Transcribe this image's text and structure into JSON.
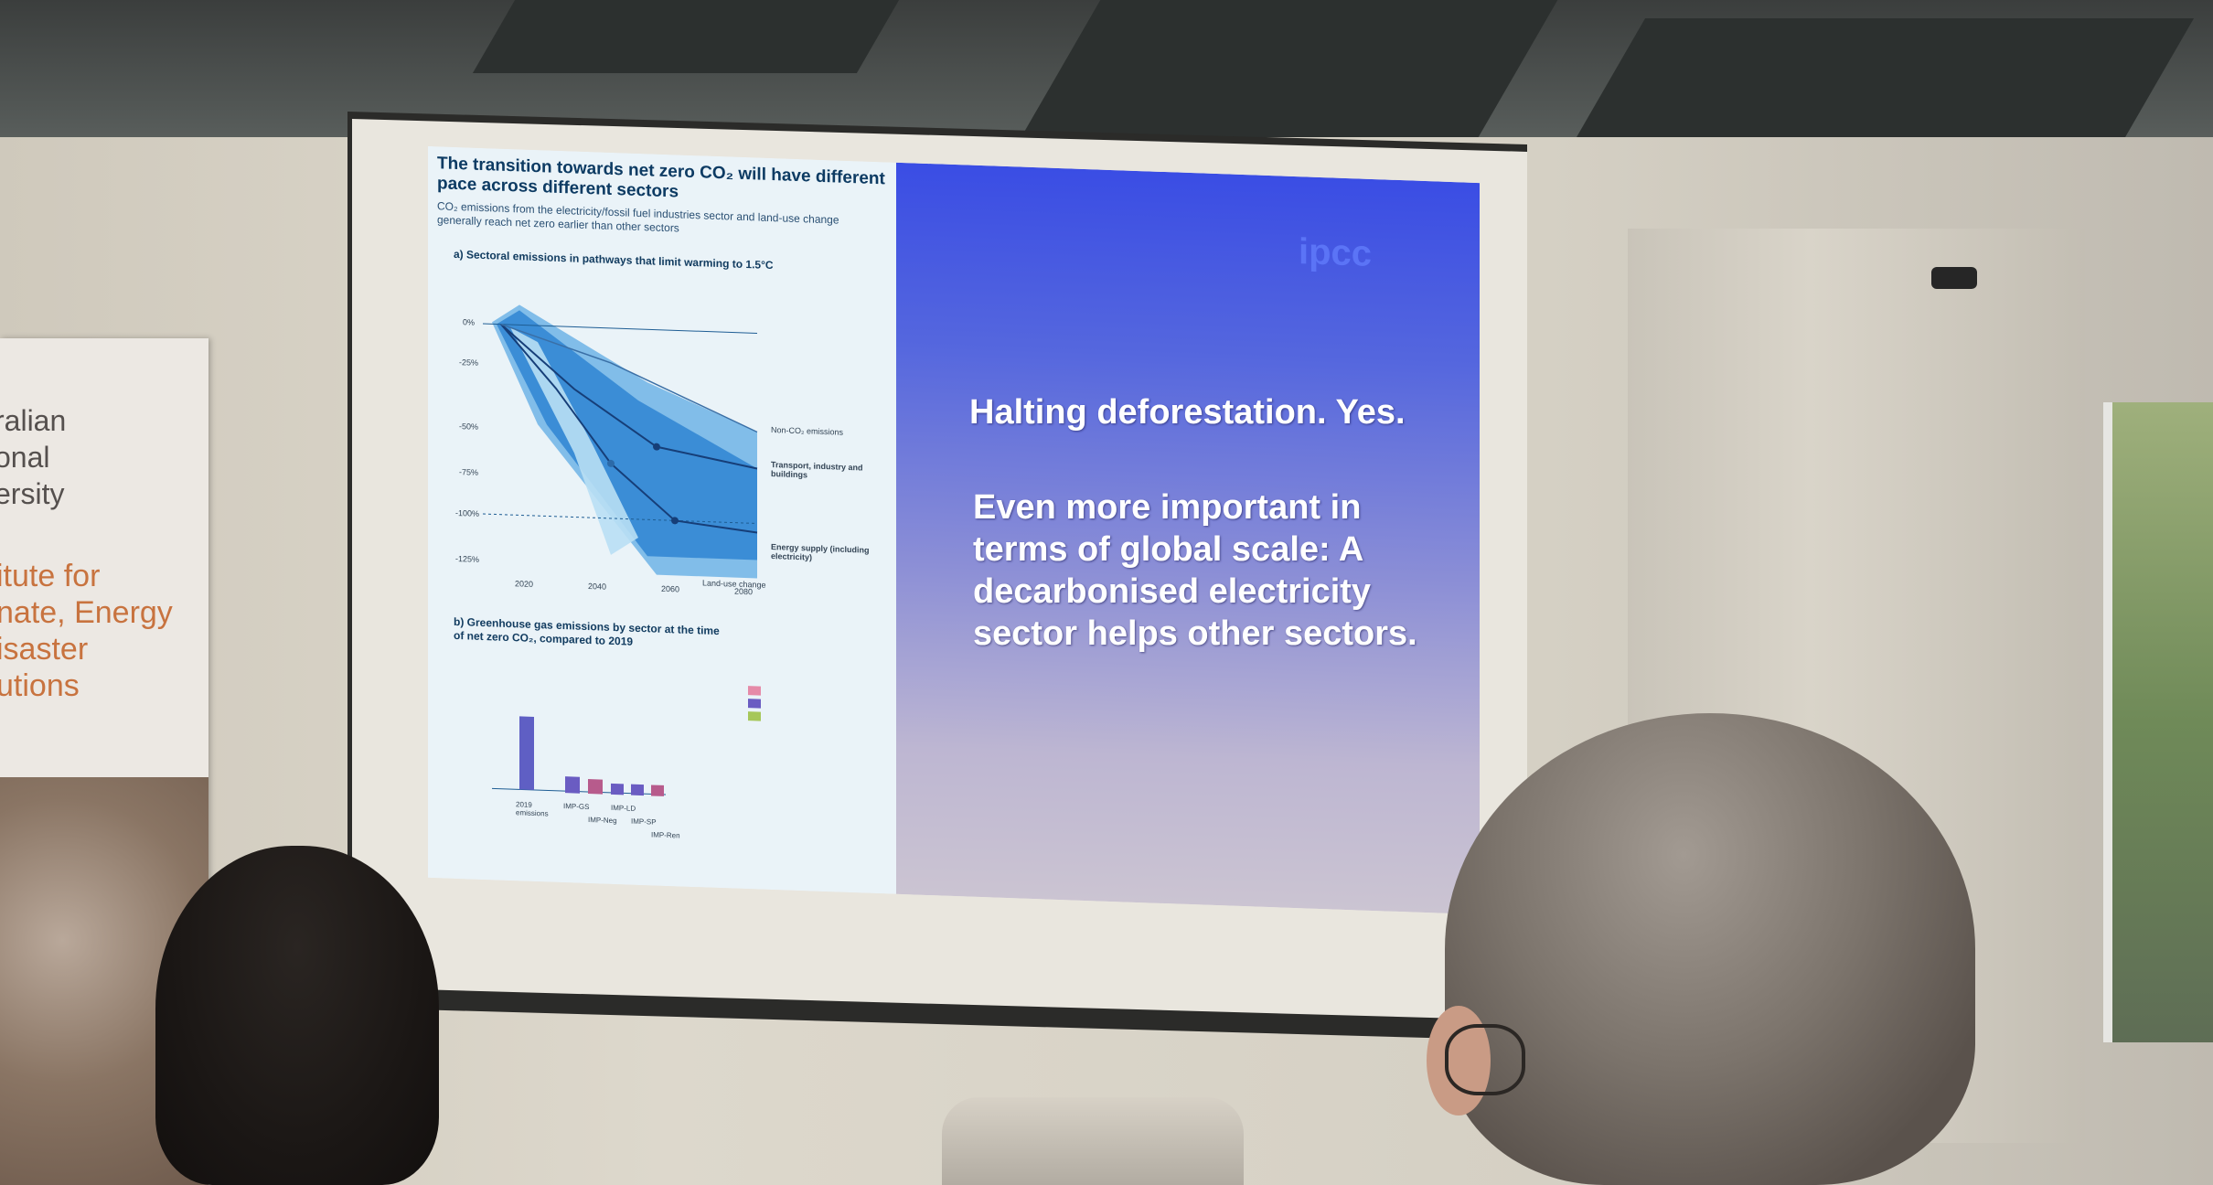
{
  "banner": {
    "university_text": "ralian\nonal\nersity",
    "institute_text": "itute for\nnate, Energy\nisaster\nutions"
  },
  "slide": {
    "figure_title": "The transition towards net zero CO₂ will have different pace across different sectors",
    "figure_subtitle": "CO₂ emissions from the electricity/fossil fuel industries sector and land-use change generally reach net zero earlier than other sectors",
    "panel_a_title": "a) Sectoral emissions in pathways that limit warming to 1.5°C",
    "panel_b_title": "b) Greenhouse gas emissions by sector at the time of net zero CO₂, compared to 2019",
    "panel_a_labels": {
      "non_co2": "Non-CO₂ emissions",
      "transport": "Transport, industry and buildings",
      "energy": "Energy supply (including electricity)",
      "land_use": "Land-use change"
    },
    "y_ticks": [
      "0%",
      "-25%",
      "-50%",
      "-75%",
      "-100%",
      "-125%"
    ],
    "x_ticks": [
      "2020",
      "2040",
      "2060",
      "2080"
    ],
    "panel_b_categories": [
      "2019 emissions",
      "IMP-GS",
      "IMP-Neg",
      "IMP-LD",
      "IMP-SP",
      "IMP-Ren"
    ],
    "logo": "ipcc",
    "headline": "Halting deforestation. Yes.",
    "body": "Even more important in\nterms of global scale: A\ndecarbonised electricity\nsector helps other sectors."
  },
  "colors": {
    "slide_blue": "#3a4de4",
    "banner_orange": "#c8733f",
    "chart_band": "#3d8ed6"
  }
}
